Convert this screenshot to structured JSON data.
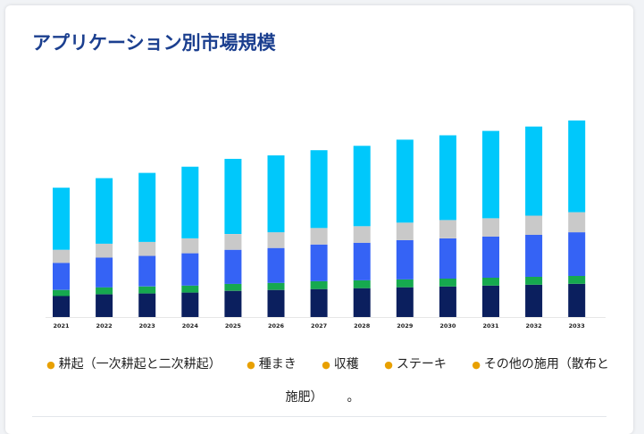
{
  "title": "アプリケーション別市場規模",
  "legend_suffix": "。",
  "chart_data": {
    "type": "bar",
    "stacked": true,
    "title": "アプリケーション別市場規模",
    "xlabel": "",
    "ylabel": "",
    "grid": false,
    "legend_position": "bottom",
    "categories": [
      "2021",
      "2022",
      "2023",
      "2024",
      "2025",
      "2026",
      "2027",
      "2028",
      "2029",
      "2030",
      "2031",
      "2032",
      "2033"
    ],
    "ylim": [
      0,
      230
    ],
    "series": [
      {
        "name": "耕起（一次耕起と二次耕起）",
        "color": "#0b1f5e",
        "values": [
          24,
          26,
          27,
          28,
          30,
          31,
          32,
          33,
          34,
          35,
          36,
          37,
          38
        ]
      },
      {
        "name": "種まき",
        "color": "#16a94f",
        "values": [
          7,
          8,
          8,
          8,
          8,
          8,
          9,
          9,
          9,
          9,
          9,
          9,
          9
        ]
      },
      {
        "name": "収穫",
        "color": "#3563f5",
        "values": [
          31,
          34,
          35,
          37,
          39,
          40,
          42,
          43,
          45,
          46,
          47,
          48,
          50
        ]
      },
      {
        "name": "ステーキ",
        "color": "#c9c9c9",
        "values": [
          15,
          16,
          16,
          17,
          18,
          18,
          19,
          19,
          20,
          21,
          21,
          22,
          23
        ]
      },
      {
        "name": "その他の施用（散布と施肥）",
        "color": "#00c8fb",
        "values": [
          71,
          75,
          79,
          82,
          86,
          88,
          89,
          92,
          95,
          97,
          100,
          102,
          105
        ]
      }
    ]
  }
}
